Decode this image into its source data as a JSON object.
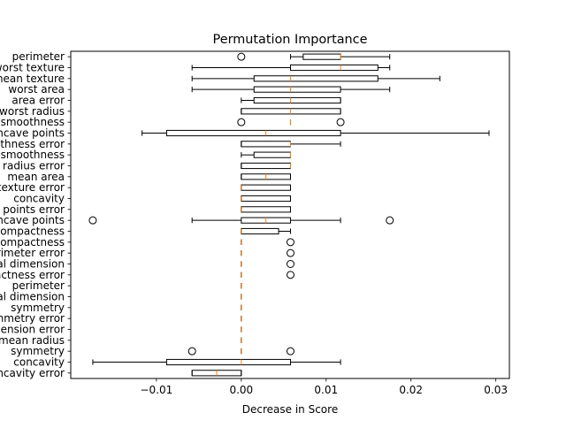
{
  "chart_data": {
    "type": "boxplot",
    "orientation": "horizontal",
    "title": "Permutation Importance",
    "xlabel": "Decrease in Score",
    "ylabel": "",
    "xlim": [
      -0.0201,
      0.0316
    ],
    "xticks": [
      -0.01,
      0.0,
      0.01,
      0.02,
      0.03
    ],
    "xtick_labels": [
      "−0.01",
      "0.00",
      "0.01",
      "0.02",
      "0.03"
    ],
    "grid": false,
    "colors": {
      "box": "#000000",
      "median": "#ff7f0e",
      "flier": "#000000"
    },
    "features": [
      {
        "label": "perimeter",
        "wl": 0.0058,
        "q1": 0.0073,
        "med": 0.0117,
        "q3": 0.0117,
        "wh": 0.0175,
        "fliers": [
          0.0
        ]
      },
      {
        "label": "worst texture",
        "wl": -0.0058,
        "q1": 0.0058,
        "med": 0.0117,
        "q3": 0.0161,
        "wh": 0.0175,
        "fliers": []
      },
      {
        "label": "mean texture",
        "wl": -0.0058,
        "q1": 0.0015,
        "med": 0.0058,
        "q3": 0.0161,
        "wh": 0.0234,
        "fliers": []
      },
      {
        "label": "worst area",
        "wl": -0.0058,
        "q1": 0.0015,
        "med": 0.0058,
        "q3": 0.0117,
        "wh": 0.0175,
        "fliers": []
      },
      {
        "label": "area error",
        "wl": 0.0,
        "q1": 0.0015,
        "med": 0.0058,
        "q3": 0.0117,
        "wh": 0.0117,
        "fliers": []
      },
      {
        "label": "worst radius",
        "wl": 0.0,
        "q1": 0.0,
        "med": 0.0058,
        "q3": 0.0117,
        "wh": 0.0117,
        "fliers": []
      },
      {
        "label": "smoothness",
        "wl": 0.0058,
        "q1": 0.0058,
        "med": 0.0058,
        "q3": 0.0058,
        "wh": 0.0058,
        "fliers": [
          0.0,
          0.0117
        ]
      },
      {
        "label": "concave points",
        "wl": -0.0117,
        "q1": -0.0088,
        "med": 0.0029,
        "q3": 0.0117,
        "wh": 0.0292,
        "fliers": []
      },
      {
        "label": "smoothness error",
        "wl": 0.0,
        "q1": 0.0,
        "med": 0.0058,
        "q3": 0.0058,
        "wh": 0.0117,
        "fliers": []
      },
      {
        "label": "mean smoothness",
        "wl": 0.0,
        "q1": 0.0015,
        "med": 0.0058,
        "q3": 0.0058,
        "wh": 0.0058,
        "fliers": []
      },
      {
        "label": "radius error",
        "wl": 0.0,
        "q1": 0.0,
        "med": 0.0058,
        "q3": 0.0058,
        "wh": 0.0058,
        "fliers": []
      },
      {
        "label": "mean area",
        "wl": 0.0,
        "q1": 0.0,
        "med": 0.0029,
        "q3": 0.0058,
        "wh": 0.0058,
        "fliers": []
      },
      {
        "label": "texture error",
        "wl": 0.0,
        "q1": 0.0,
        "med": 0.0,
        "q3": 0.0058,
        "wh": 0.0058,
        "fliers": []
      },
      {
        "label": "concavity",
        "wl": 0.0,
        "q1": 0.0,
        "med": 0.0,
        "q3": 0.0058,
        "wh": 0.0058,
        "fliers": []
      },
      {
        "label": "points error",
        "wl": 0.0,
        "q1": 0.0,
        "med": 0.0,
        "q3": 0.0058,
        "wh": 0.0058,
        "fliers": []
      },
      {
        "label": "concave points",
        "wl": -0.0058,
        "q1": 0.0,
        "med": 0.0029,
        "q3": 0.0058,
        "wh": 0.0117,
        "fliers": [
          -0.0175,
          0.0175
        ]
      },
      {
        "label": "compactness",
        "wl": 0.0,
        "q1": 0.0,
        "med": 0.0,
        "q3": 0.0044,
        "wh": 0.0058,
        "fliers": []
      },
      {
        "label": "compactness",
        "wl": 0.0,
        "q1": 0.0,
        "med": 0.0,
        "q3": 0.0,
        "wh": 0.0,
        "fliers": [
          0.0058
        ]
      },
      {
        "label": "perimeter error",
        "wl": 0.0,
        "q1": 0.0,
        "med": 0.0,
        "q3": 0.0,
        "wh": 0.0,
        "fliers": [
          0.0058
        ]
      },
      {
        "label": "fractal dimension",
        "wl": 0.0,
        "q1": 0.0,
        "med": 0.0,
        "q3": 0.0,
        "wh": 0.0,
        "fliers": [
          0.0058
        ]
      },
      {
        "label": "compactness error",
        "wl": 0.0,
        "q1": 0.0,
        "med": 0.0,
        "q3": 0.0,
        "wh": 0.0,
        "fliers": [
          0.0058
        ]
      },
      {
        "label": "perimeter",
        "wl": 0.0,
        "q1": 0.0,
        "med": 0.0,
        "q3": 0.0,
        "wh": 0.0,
        "fliers": []
      },
      {
        "label": "fractal dimension",
        "wl": 0.0,
        "q1": 0.0,
        "med": 0.0,
        "q3": 0.0,
        "wh": 0.0,
        "fliers": []
      },
      {
        "label": "symmetry",
        "wl": 0.0,
        "q1": 0.0,
        "med": 0.0,
        "q3": 0.0,
        "wh": 0.0,
        "fliers": []
      },
      {
        "label": "symmetry error",
        "wl": 0.0,
        "q1": 0.0,
        "med": 0.0,
        "q3": 0.0,
        "wh": 0.0,
        "fliers": []
      },
      {
        "label": "dimension error",
        "wl": 0.0,
        "q1": 0.0,
        "med": 0.0,
        "q3": 0.0,
        "wh": 0.0,
        "fliers": []
      },
      {
        "label": "mean radius",
        "wl": 0.0,
        "q1": 0.0,
        "med": 0.0,
        "q3": 0.0,
        "wh": 0.0,
        "fliers": []
      },
      {
        "label": "symmetry",
        "wl": 0.0,
        "q1": 0.0,
        "med": 0.0,
        "q3": 0.0,
        "wh": 0.0,
        "fliers": [
          -0.0058,
          0.0058
        ]
      },
      {
        "label": "concavity",
        "wl": -0.0175,
        "q1": -0.0088,
        "med": 0.0,
        "q3": 0.0058,
        "wh": 0.0117,
        "fliers": []
      },
      {
        "label": "concavity error",
        "wl": -0.0058,
        "q1": -0.0058,
        "med": -0.0029,
        "q3": 0.0,
        "wh": 0.0,
        "fliers": []
      }
    ]
  }
}
